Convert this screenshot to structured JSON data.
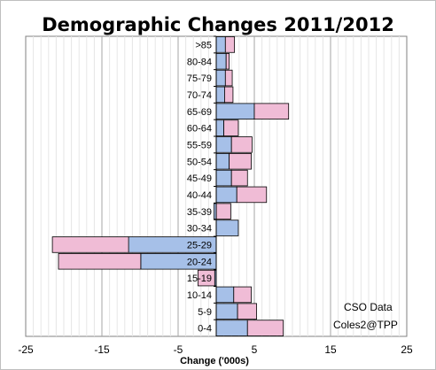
{
  "chart_data": {
    "type": "bar",
    "orientation": "horizontal",
    "stacked": true,
    "title": "Demographic Changes 2011/2012",
    "xlabel": "Change ('000s)",
    "ylabel": "",
    "xlim": [
      -25,
      25
    ],
    "xticks": [
      "-25",
      "-15",
      "-5",
      "5",
      "15",
      "25"
    ],
    "xtick_values": [
      -25,
      -15,
      -5,
      5,
      15,
      25
    ],
    "grid": true,
    "legend": "none",
    "categories": [
      ">85",
      "80-84",
      "75-79",
      "70-74",
      "65-69",
      "60-64",
      "55-59",
      "50-54",
      "45-49",
      "40-44",
      "35-39",
      "30-34",
      "25-29",
      "20-24",
      "15-19",
      "10-14",
      "5-9",
      "0-4"
    ],
    "series": [
      {
        "color": "#a6c0e8",
        "values": [
          1.2,
          1.3,
          1.2,
          1.1,
          5.0,
          1.0,
          2.0,
          1.7,
          2.0,
          2.7,
          -0.3,
          2.9,
          -11.5,
          -9.9,
          -0.2,
          2.3,
          2.8,
          4.1
        ]
      },
      {
        "color": "#f0bcd6",
        "values": [
          1.2,
          0.4,
          0.9,
          1.1,
          4.5,
          1.9,
          2.7,
          2.9,
          2.1,
          3.9,
          1.9,
          0.0,
          -10.0,
          -10.8,
          -2.2,
          2.3,
          2.5,
          4.7
        ]
      }
    ],
    "annotations": [
      "CSO Data",
      "Coles2@TPP"
    ]
  }
}
